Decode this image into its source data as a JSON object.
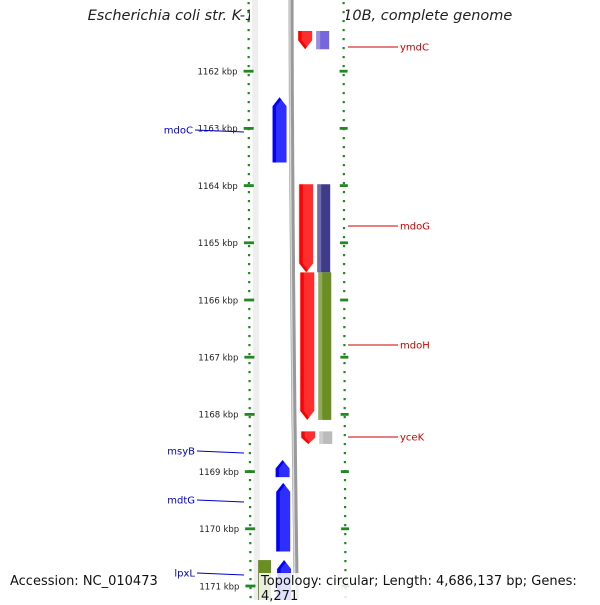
{
  "title": "Escherichia coli str. K-12 substr. DH10B, complete genome",
  "footer": {
    "accession": "Accession: NC_010473",
    "topology": "Topology: circular; Length: 4,686,137 bp; Genes: 4,271"
  },
  "ruler": {
    "unit": "kbp",
    "ticks": [
      "1162 kbp",
      "1163 kbp",
      "1164 kbp",
      "1165 kbp",
      "1166 kbp",
      "1167 kbp",
      "1168 kbp",
      "1169 kbp",
      "1170 kbp",
      "1171 kbp"
    ]
  },
  "colors": {
    "forward_cds": "#ff0000",
    "reverse_cds": "#0000ff",
    "label_forward": "#cc0000",
    "label_reverse": "#0000cc",
    "cog_purple": "#7766dd",
    "cog_indigo": "#3f3b88",
    "cog_olive": "#6b8e23",
    "cog_grey": "#bbbbbb",
    "tick_green": "#228822",
    "backbone": "#888888"
  },
  "genes": [
    {
      "name": "ymdC",
      "strand": "+",
      "start_kbp": 1161.3,
      "end_kbp": 1161.62,
      "cog_color": "cog_purple"
    },
    {
      "name": "mdoC",
      "strand": "-",
      "start_kbp": 1162.46,
      "end_kbp": 1163.6,
      "cog_color": ""
    },
    {
      "name": "mdoG",
      "strand": "+",
      "start_kbp": 1163.98,
      "end_kbp": 1165.52,
      "cog_color": "cog_indigo"
    },
    {
      "name": "mdoH",
      "strand": "+",
      "start_kbp": 1165.52,
      "end_kbp": 1168.1,
      "cog_color": "cog_olive"
    },
    {
      "name": "yceK",
      "strand": "+",
      "start_kbp": 1168.3,
      "end_kbp": 1168.52,
      "cog_color": "cog_grey"
    },
    {
      "name": "msyB",
      "strand": "-",
      "start_kbp": 1168.8,
      "end_kbp": 1169.1,
      "cog_color": ""
    },
    {
      "name": "mdtG",
      "strand": "-",
      "start_kbp": 1169.2,
      "end_kbp": 1170.4,
      "cog_color": ""
    },
    {
      "name": "lpxL",
      "strand": "-",
      "start_kbp": 1170.55,
      "end_kbp": 1171.5,
      "cog_color": "cog_olive"
    }
  ]
}
